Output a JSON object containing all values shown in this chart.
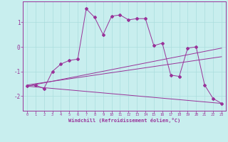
{
  "xlabel": "Windchill (Refroidissement éolien,°C)",
  "background_color": "#c8eeee",
  "grid_color": "#aadddd",
  "line_color": "#993399",
  "x_values": [
    0,
    1,
    2,
    3,
    4,
    5,
    6,
    7,
    8,
    9,
    10,
    11,
    12,
    13,
    14,
    15,
    16,
    17,
    18,
    19,
    20,
    21,
    22,
    23
  ],
  "series1": [
    -1.6,
    -1.55,
    -1.7,
    -1.0,
    -0.7,
    -0.55,
    -0.5,
    1.55,
    1.2,
    0.5,
    1.25,
    1.3,
    1.1,
    1.15,
    1.15,
    0.05,
    0.15,
    -1.15,
    -1.2,
    -0.05,
    0.0,
    -1.55,
    -2.1,
    -2.3
  ],
  "line2_x": [
    0,
    23
  ],
  "line2_y": [
    -1.6,
    -0.05
  ],
  "line3_x": [
    0,
    23
  ],
  "line3_y": [
    -1.6,
    -2.3
  ],
  "line4_x": [
    0,
    23
  ],
  "line4_y": [
    -1.55,
    -0.4
  ],
  "ylim": [
    -2.6,
    1.85
  ],
  "xlim": [
    -0.5,
    23.5
  ],
  "yticks": [
    -2,
    -1,
    0,
    1
  ],
  "xticks": [
    0,
    1,
    2,
    3,
    4,
    5,
    6,
    7,
    8,
    9,
    10,
    11,
    12,
    13,
    14,
    15,
    16,
    17,
    18,
    19,
    20,
    21,
    22,
    23
  ]
}
